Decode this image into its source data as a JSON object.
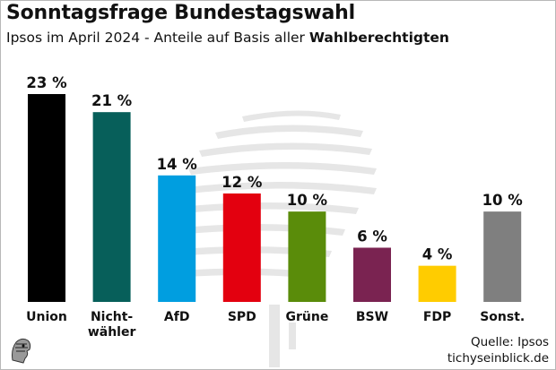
{
  "header": {
    "title": "Sonntagsfrage Bundestagswahl",
    "subtitle_prefix": "Ipsos im April 2024 - Anteile auf Basis aller ",
    "subtitle_bold": "Wahlberechtigten"
  },
  "footer": {
    "source": "Quelle: Ipsos",
    "site": "tichyseinblick.de"
  },
  "chart_data": {
    "type": "bar",
    "categories": [
      "Union",
      "Nicht-\nwähler",
      "AfD",
      "SPD",
      "Grüne",
      "BSW",
      "FDP",
      "Sonst."
    ],
    "values": [
      23,
      21,
      14,
      12,
      10,
      6,
      4,
      10
    ],
    "value_labels": [
      "23 %",
      "21 %",
      "14 %",
      "12 %",
      "10 %",
      "6 %",
      "4 %",
      "10 %"
    ],
    "colors": [
      "#000000",
      "#075f5a",
      "#009ee0",
      "#e3000f",
      "#5a8c0a",
      "#7a2351",
      "#ffcc00",
      "#7f7f7f"
    ],
    "ylim": [
      0,
      23
    ],
    "grid": false,
    "legend": "none"
  }
}
